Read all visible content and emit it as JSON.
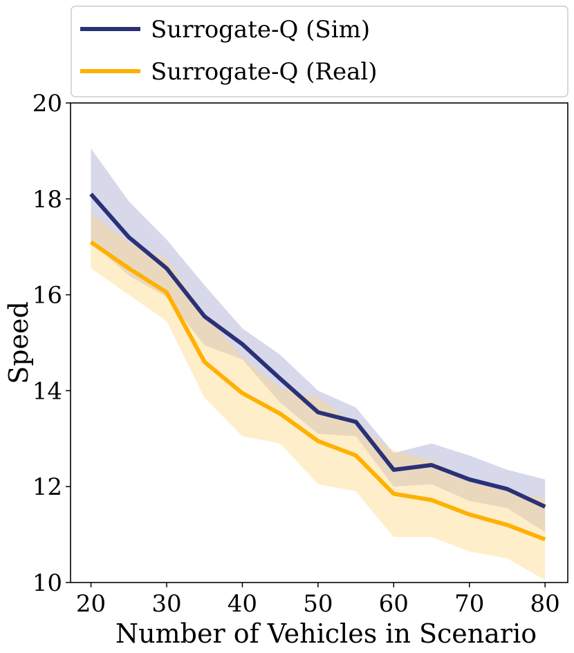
{
  "chart_data": {
    "type": "line",
    "title": "",
    "xlabel": "Number of Vehicles in Scenario",
    "ylabel": "Speed",
    "xlim": [
      17.3,
      83.0
    ],
    "ylim": [
      10,
      20
    ],
    "xticks": [
      20,
      30,
      40,
      50,
      60,
      70,
      80
    ],
    "yticks": [
      10,
      12,
      14,
      16,
      18,
      20
    ],
    "grid": false,
    "legend_position": "top",
    "x": [
      20,
      25,
      30,
      35,
      40,
      45,
      50,
      55,
      60,
      65,
      70,
      75,
      80
    ],
    "series": [
      {
        "name": "Surrogate-Q (Sim)",
        "color": "#2a3178",
        "band_color": "#8c90c2",
        "values": [
          18.1,
          17.2,
          16.55,
          15.55,
          14.97,
          14.25,
          13.55,
          13.35,
          12.35,
          12.45,
          12.15,
          11.95,
          11.58
        ],
        "upper": [
          19.05,
          17.95,
          17.15,
          16.2,
          15.3,
          14.75,
          14.0,
          13.65,
          12.7,
          12.9,
          12.65,
          12.35,
          12.15
        ],
        "lower": [
          17.1,
          16.4,
          15.95,
          14.95,
          14.65,
          13.75,
          13.1,
          13.05,
          12.0,
          12.05,
          11.7,
          11.55,
          11.05
        ]
      },
      {
        "name": "Surrogate-Q (Real)",
        "color": "#ffb000",
        "band_color": "#ffd98a",
        "values": [
          17.1,
          16.55,
          16.05,
          14.6,
          13.95,
          13.52,
          12.95,
          12.65,
          11.85,
          11.72,
          11.42,
          11.2,
          10.9
        ],
        "upper": [
          17.7,
          17.1,
          16.75,
          15.6,
          14.7,
          14.05,
          13.85,
          13.3,
          12.75,
          12.55,
          12.1,
          11.9,
          11.75
        ],
        "lower": [
          16.55,
          16.0,
          15.45,
          13.85,
          13.05,
          12.9,
          12.05,
          11.9,
          10.95,
          10.95,
          10.65,
          10.5,
          10.05
        ]
      }
    ]
  }
}
